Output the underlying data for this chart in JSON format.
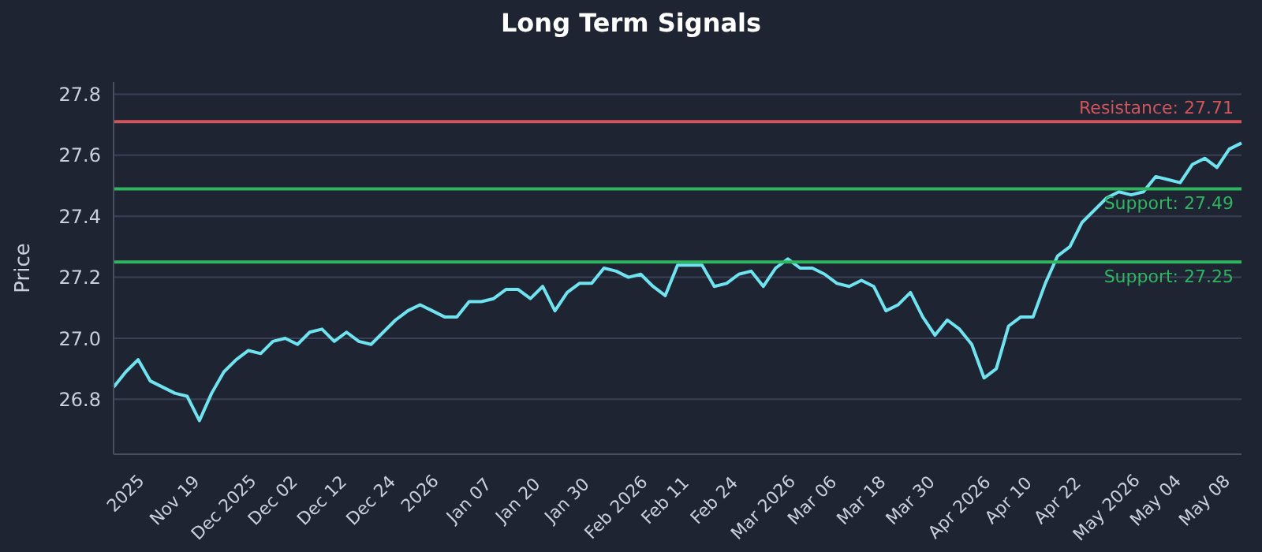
{
  "chart_data": {
    "type": "line",
    "title": "Long Term Signals",
    "ylabel": "Price",
    "categories": [
      null,
      "2025",
      null,
      null,
      null,
      "Nov 19",
      null,
      null,
      null,
      "Dec 2025",
      null,
      null,
      null,
      "Dec 02",
      null,
      null,
      null,
      "Dec 12",
      null,
      null,
      null,
      "Dec 24",
      null,
      null,
      null,
      "2026",
      null,
      null,
      null,
      "Jan 07",
      null,
      null,
      null,
      "Jan 20",
      null,
      null,
      null,
      "Jan 30",
      null,
      null,
      null,
      "Feb 2026",
      null,
      null,
      null,
      "Feb 11",
      null,
      null,
      null,
      "Feb 24",
      null,
      null,
      null,
      "Mar 2026",
      null,
      null,
      null,
      "Mar 06",
      null,
      null,
      null,
      "Mar 18",
      null,
      null,
      null,
      "Mar 30",
      null,
      null,
      null,
      "Apr 2026",
      null,
      null,
      null,
      "Apr 10",
      null,
      null,
      null,
      "Apr 22",
      null,
      null,
      null,
      "May 2026",
      null,
      null,
      null,
      "May 04",
      null,
      null,
      null,
      "May 08",
      null,
      null,
      null
    ],
    "series": [
      {
        "color": "#6fe3ef",
        "values": [
          26.84,
          26.89,
          26.93,
          26.86,
          26.84,
          26.82,
          26.81,
          26.73,
          26.82,
          26.89,
          26.93,
          26.96,
          26.95,
          26.99,
          27.0,
          26.98,
          27.02,
          27.03,
          26.99,
          27.02,
          26.99,
          26.98,
          27.02,
          27.06,
          27.09,
          27.11,
          27.09,
          27.07,
          27.07,
          27.12,
          27.12,
          27.13,
          27.16,
          27.16,
          27.13,
          27.17,
          27.09,
          27.15,
          27.18,
          27.18,
          27.23,
          27.22,
          27.2,
          27.21,
          27.17,
          27.14,
          27.24,
          27.24,
          27.24,
          27.17,
          27.18,
          27.21,
          27.22,
          27.17,
          27.23,
          27.26,
          27.23,
          27.23,
          27.21,
          27.18,
          27.17,
          27.19,
          27.17,
          27.09,
          27.11,
          27.15,
          27.07,
          27.01,
          27.06,
          27.03,
          26.98,
          26.87,
          26.9,
          27.04,
          27.07,
          27.07,
          27.18,
          27.27,
          27.3,
          27.38,
          27.42,
          27.46,
          27.48,
          27.47,
          27.48,
          27.53,
          27.52,
          27.51,
          27.57,
          27.59,
          27.56,
          27.62,
          27.64
        ]
      }
    ],
    "ylim": [
      26.62,
      27.84
    ],
    "yticks": [
      26.8,
      {
        "value": 27,
        "label": "27.0"
      },
      27.2,
      27.4,
      27.6,
      27.8
    ],
    "grid": "y",
    "ref_lines": [
      {
        "axis": "y",
        "value": 27.71,
        "label": "Resistance: 27.71",
        "color": "#d0555a"
      },
      {
        "axis": "y",
        "value": 27.49,
        "label": "Support: 27.49",
        "color": "#2fb55f"
      },
      {
        "axis": "y",
        "value": 27.25,
        "label": "Support: 27.25",
        "color": "#2fb55f"
      }
    ]
  }
}
